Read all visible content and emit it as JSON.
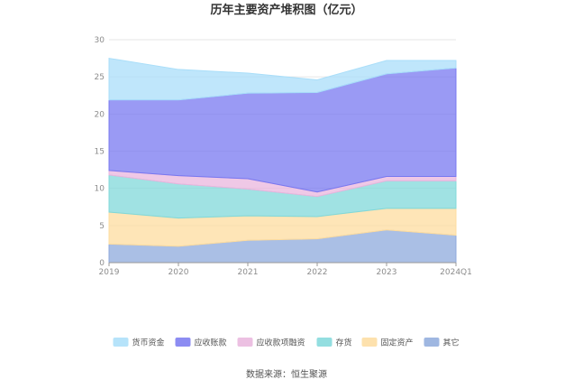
{
  "chart_data": {
    "type": "area",
    "stacked": true,
    "title": "历年主要资产堆积图（亿元）",
    "source": "数据来源：恒生聚源",
    "categories": [
      "2019",
      "2020",
      "2021",
      "2022",
      "2023",
      "2024Q1"
    ],
    "ylim": [
      0,
      30
    ],
    "yticks": [
      0,
      5,
      10,
      15,
      20,
      25,
      30
    ],
    "grid": true,
    "legend_position": "bottom",
    "series": [
      {
        "name": "其它",
        "color": "#8eaadc",
        "values": [
          2.5,
          2.2,
          3.0,
          3.2,
          4.4,
          3.7
        ]
      },
      {
        "name": "固定资产",
        "color": "#fddc9f",
        "values": [
          4.3,
          3.8,
          3.3,
          3.0,
          2.9,
          3.6
        ]
      },
      {
        "name": "存货",
        "color": "#80d8da",
        "values": [
          5.0,
          4.6,
          3.6,
          2.7,
          3.7,
          3.7
        ]
      },
      {
        "name": "应收款项融资",
        "color": "#e9b5dd",
        "values": [
          0.6,
          1.1,
          1.4,
          0.6,
          0.6,
          0.6
        ]
      },
      {
        "name": "应收账款",
        "color": "#7878f0",
        "values": [
          9.5,
          10.2,
          11.5,
          13.4,
          13.8,
          14.6
        ]
      },
      {
        "name": "货币资金",
        "color": "#a9def9",
        "values": [
          5.6,
          4.1,
          2.7,
          1.7,
          1.8,
          1.0
        ]
      }
    ]
  }
}
